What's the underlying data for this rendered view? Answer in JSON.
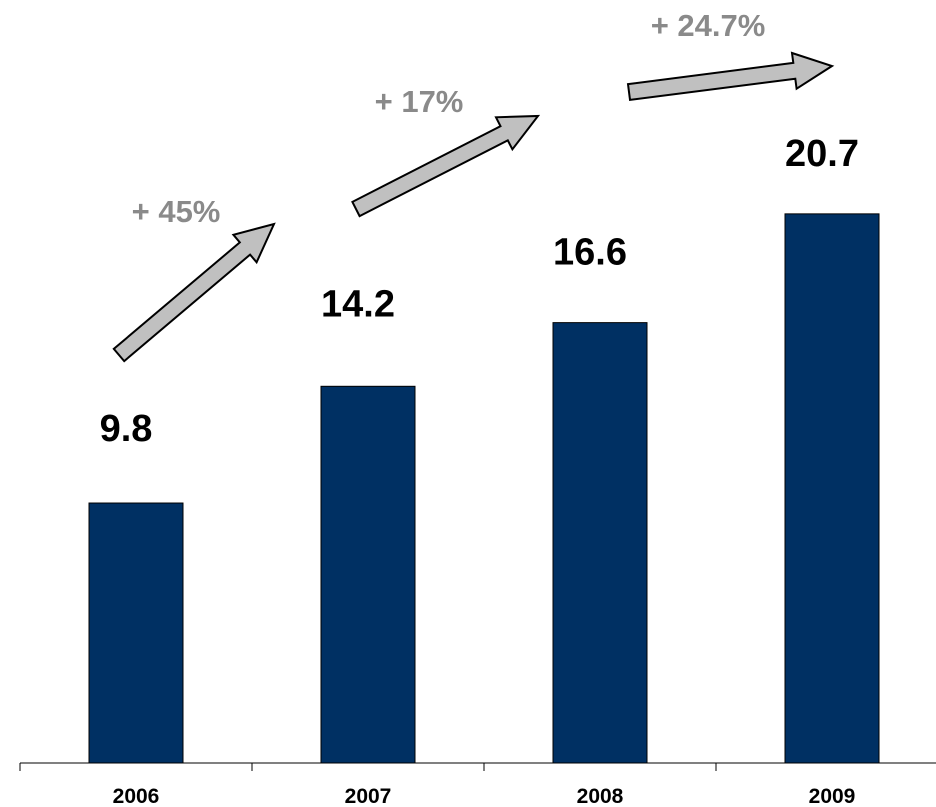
{
  "chart_data": {
    "type": "bar",
    "categories": [
      "2006",
      "2007",
      "2008",
      "2009"
    ],
    "values": [
      9.8,
      14.2,
      16.6,
      20.7
    ],
    "value_labels": [
      "9.8",
      "14.2",
      "16.6",
      "20.7"
    ],
    "title": "",
    "xlabel": "",
    "ylabel": "",
    "ylim": [
      0,
      26.5
    ],
    "grid": false,
    "legend": "none",
    "annotations": [
      {
        "text": "+ 45%",
        "from": "2006",
        "to": "2007"
      },
      {
        "text": "+ 17%",
        "from": "2007",
        "to": "2008"
      },
      {
        "text": "+ 24.7%",
        "from": "2008",
        "to": "2009"
      }
    ]
  },
  "colors": {
    "bar": "#003063",
    "bar_edge": "#000000",
    "arrow_fill": "#c0c0c0",
    "arrow_edge": "#000000",
    "annotation_text": "#8a8a8a",
    "axis": "#000000"
  }
}
